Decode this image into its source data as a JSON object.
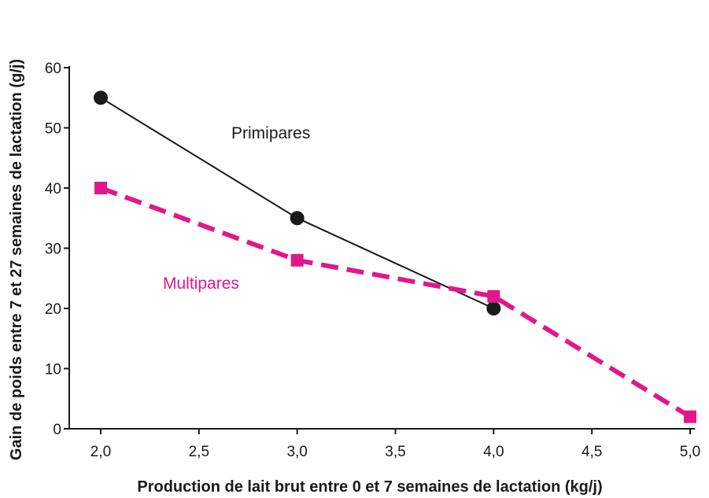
{
  "chart_data": {
    "type": "line",
    "xlabel": "Production de lait brut entre 0 et 7 semaines de lactation (kg/j)",
    "ylabel": "Gain de poids  entre 7 et 27 semaines de lactation (g/j)",
    "xlim": [
      2.0,
      5.0
    ],
    "ylim": [
      0,
      60
    ],
    "x_ticks": [
      2.0,
      2.5,
      3.0,
      3.5,
      4.0,
      4.5,
      5.0
    ],
    "x_tick_labels": [
      "2,0",
      "2,5",
      "3,0",
      "3,5",
      "4,0",
      "4,5",
      "5,0"
    ],
    "y_ticks": [
      0,
      10,
      20,
      30,
      40,
      50,
      60
    ],
    "y_tick_labels": [
      "0",
      "10",
      "20",
      "30",
      "40",
      "50",
      "60"
    ],
    "grid": false,
    "legend": "inline labels",
    "series": [
      {
        "name": "Primipares",
        "x": [
          2.0,
          3.0,
          4.0
        ],
        "values": [
          55,
          35,
          20
        ],
        "color": "#1a1a1a",
        "line_style": "solid",
        "marker": "circle"
      },
      {
        "name": "Multipares",
        "x": [
          2.0,
          3.0,
          4.0,
          5.0
        ],
        "values": [
          40,
          28,
          22,
          2
        ],
        "color": "#e0188c",
        "line_style": "dashed",
        "marker": "square"
      }
    ]
  }
}
